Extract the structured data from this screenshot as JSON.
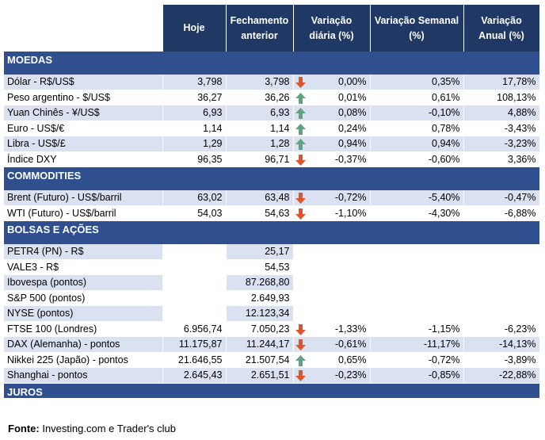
{
  "header": {
    "columns": [
      null,
      "Hoje",
      "Fechamento anterior",
      "Variação diária (%)",
      "Variação Semanal (%)",
      "Variação Anual (%)"
    ]
  },
  "sections": [
    {
      "title": "MOEDAS",
      "rows": [
        [
          "Dólar - R$/US$",
          "3,798",
          "3,798",
          "0,00%",
          "0,35%",
          "17,78%"
        ],
        [
          "Peso argentino - $/US$",
          "36,27",
          "36,26",
          "0,01%",
          "0,61%",
          "108,13%"
        ],
        [
          "Yuan Chinês - ¥/US$",
          "6,93",
          "6,93",
          "0,08%",
          "-0,10%",
          "4,88%"
        ],
        [
          "Euro - US$/€",
          "1,14",
          "1,14",
          "0,24%",
          "0,78%",
          "-3,43%"
        ],
        [
          "Libra - US$/£",
          "1,29",
          "1,28",
          "0,94%",
          "0,94%",
          "-3,23%"
        ],
        [
          "Índice DXY",
          "96,35",
          "96,71",
          "-0,37%",
          "-0,60%",
          "3,36%"
        ]
      ]
    },
    {
      "title": "COMMODITIES",
      "rows": [
        [
          "Brent (Futuro) - US$/barril",
          "63,02",
          "63,48",
          "-0,72%",
          "-5,40%",
          "-0,47%"
        ],
        [
          "WTI (Futuro) - US$/barril",
          "54,03",
          "54,63",
          "-1,10%",
          "-4,30%",
          "-6,88%"
        ]
      ]
    },
    {
      "title": "BOLSAS E AÇÕES",
      "rows": [
        [
          "PETR4 (PN) - R$",
          null,
          "25,17",
          null,
          null,
          null
        ],
        [
          "VALE3 - R$",
          null,
          "54,53",
          null,
          null,
          null
        ],
        [
          "Ibovespa (pontos)",
          null,
          "87.268,80",
          null,
          null,
          null
        ],
        [
          "S&P 500 (pontos)",
          null,
          "2.649,93",
          null,
          null,
          null
        ],
        [
          "NYSE (pontos)",
          null,
          "12.123,34",
          null,
          null,
          null
        ],
        [
          "FTSE 100 (Londres)",
          "6.956,74",
          "7.050,23",
          "-1,33%",
          "-1,15%",
          "-6,23%"
        ],
        [
          "DAX (Alemanha) - pontos",
          "11.175,87",
          "11.244,17",
          "-0,61%",
          "-11,17%",
          "-14,13%"
        ],
        [
          "Nikkei 225 (Japão) - pontos",
          "21.646,55",
          "21.507,54",
          "0,65%",
          "-0,72%",
          "-3,89%"
        ],
        [
          "Shanghai - pontos",
          "2.645,43",
          "2.651,51",
          "-0,23%",
          "-0,85%",
          "-22,88%"
        ]
      ]
    },
    {
      "title": "JUROS",
      "rows": []
    }
  ],
  "source": {
    "label": "Fonte:",
    "text": "Investing.com e Trader's club"
  }
}
